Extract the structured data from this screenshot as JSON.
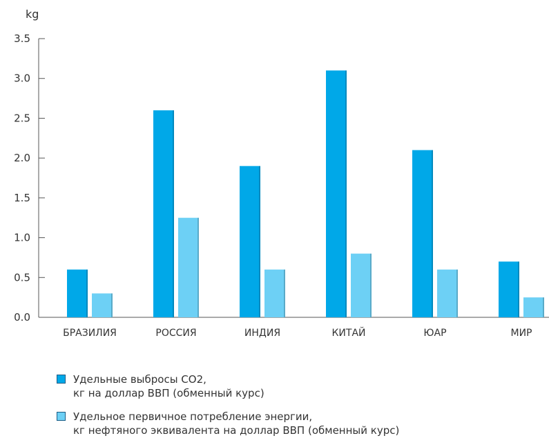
{
  "chart_data": {
    "type": "bar",
    "unit": "kg",
    "categories": [
      "БРАЗИЛИЯ",
      "РОССИЯ",
      "ИНДИЯ",
      "КИТАЙ",
      "ЮАР",
      "МИР"
    ],
    "series": [
      {
        "label_lines": [
          "Удельные выбросы CO2,",
          "кг на доллар ВВП (обменный курс)"
        ],
        "values": [
          0.6,
          2.6,
          1.9,
          3.1,
          2.1,
          0.7
        ],
        "color": "#00a8e8"
      },
      {
        "label_lines": [
          "Удельное первичное потребление энергии,",
          "кг нефтяного эквивалента на доллар ВВП (обменный курс)"
        ],
        "values": [
          0.3,
          1.25,
          0.6,
          0.8,
          0.6,
          0.25
        ],
        "color": "#6dd0f5"
      }
    ],
    "ylim": [
      0,
      3.5
    ],
    "yticks": [
      "0.0",
      "0.5",
      "1.0",
      "1.5",
      "2.0",
      "2.5",
      "3.0",
      "3.5"
    ],
    "grid": false,
    "legend_position": "bottom"
  }
}
